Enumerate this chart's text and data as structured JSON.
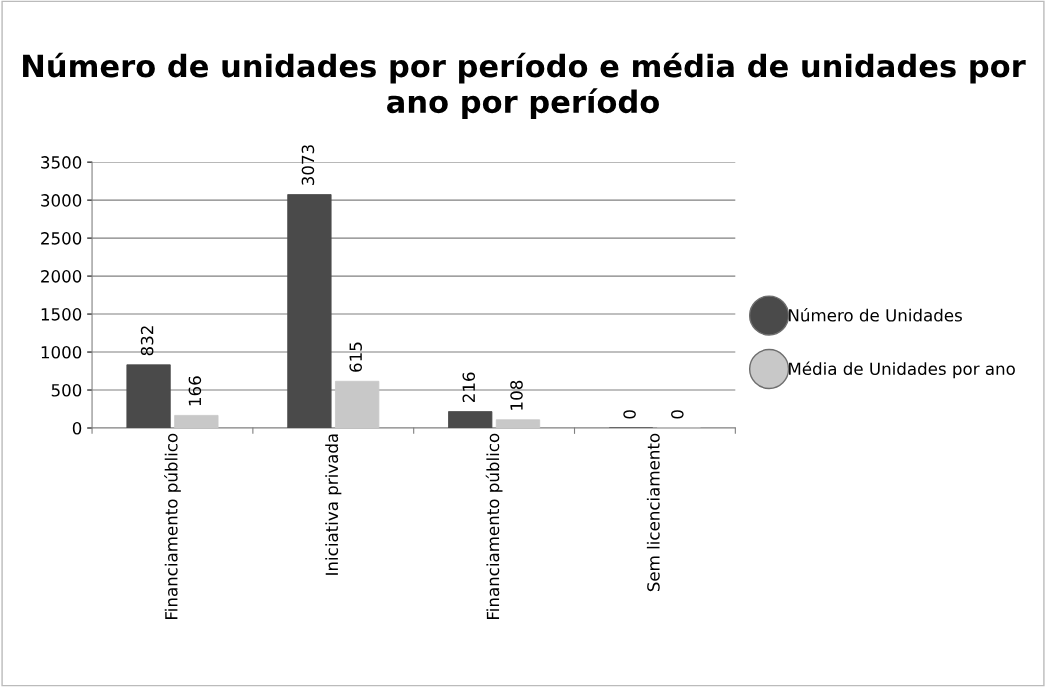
{
  "chart_data": {
    "type": "bar",
    "title": "Número de unidades por período e média de unidades por ano por período",
    "categories": [
      "Financiamento público",
      "Iniciativa privada",
      "Financiamento público",
      "Sem licenciamento"
    ],
    "series": [
      {
        "name": "Número de Unidades",
        "color": "#4a4a4a",
        "values": [
          832,
          3073,
          216,
          0
        ]
      },
      {
        "name": "Média de Unidades por ano",
        "color": "#c8c8c8",
        "values": [
          166,
          615,
          108,
          0
        ]
      }
    ],
    "ylim": [
      0,
      3500
    ],
    "yticks": [
      0,
      500,
      1000,
      1500,
      2000,
      2500,
      3000,
      3500
    ],
    "grid": "y",
    "legend": "right",
    "marker": "circle",
    "data_labels": true
  }
}
